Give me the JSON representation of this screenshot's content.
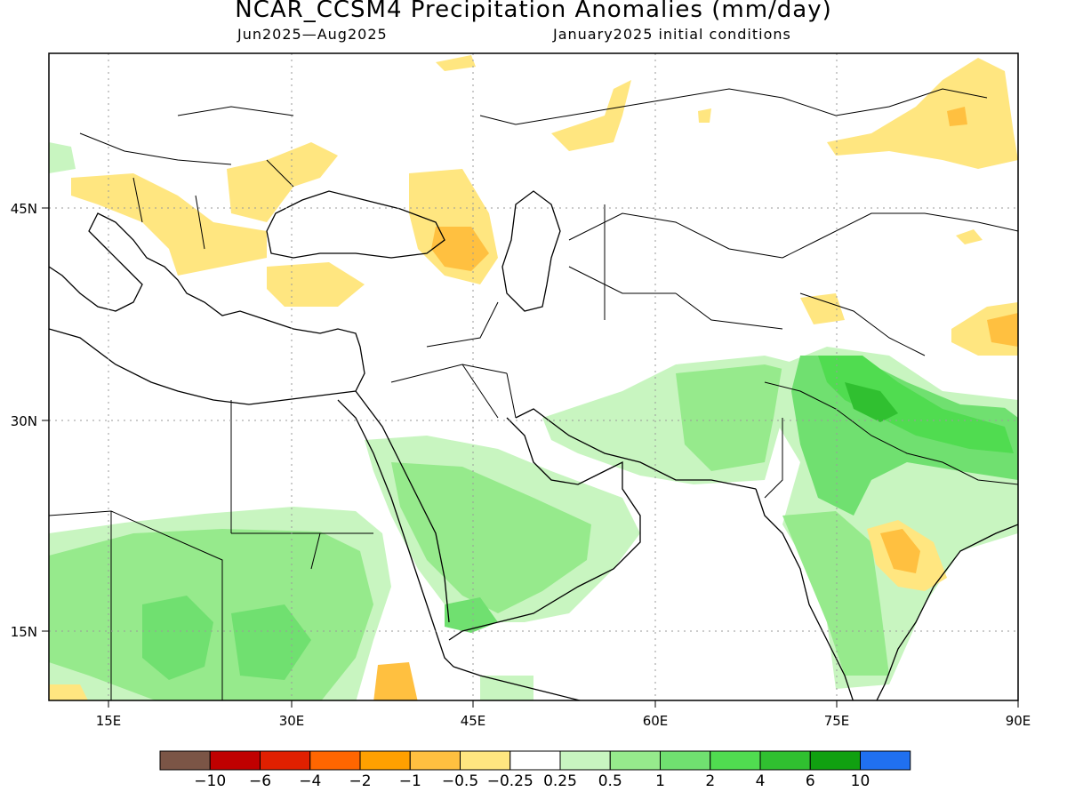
{
  "title": "NCAR_CCSM4 Precipitation Anomalies (mm/day)",
  "period": "Jun2025—Aug2025",
  "init": "January2025 initial conditions",
  "map": {
    "lon_range": [
      10,
      90
    ],
    "lat_range": [
      10,
      56
    ],
    "x_ticks": [
      {
        "lon": 15,
        "label": "15E"
      },
      {
        "lon": 30,
        "label": "30E"
      },
      {
        "lon": 45,
        "label": "45E"
      },
      {
        "lon": 60,
        "label": "60E"
      },
      {
        "lon": 75,
        "label": "75E"
      },
      {
        "lon": 90,
        "label": "90E"
      }
    ],
    "y_ticks": [
      {
        "lat": 45,
        "label": "45N"
      },
      {
        "lat": 30,
        "label": "30N"
      },
      {
        "lat": 15,
        "label": "15N"
      }
    ],
    "grid": true,
    "grid_style": "dotted"
  },
  "colorbar": {
    "colors": [
      "#7b5546",
      "#c00000",
      "#e02000",
      "#ff6600",
      "#ffa000",
      "#ffc040",
      "#ffe680",
      "#ffffff",
      "#c8f5c0",
      "#96ea8c",
      "#70e070",
      "#50dc50",
      "#30c030",
      "#10a010",
      "#2070f0"
    ],
    "labels": [
      "−10",
      "−6",
      "−4",
      "−2",
      "−1",
      "−0.5",
      "−0.25",
      "0.25",
      "0.5",
      "1",
      "2",
      "4",
      "6",
      "10"
    ]
  },
  "anomaly_regions": [
    {
      "name": "north-india-wet",
      "level": "2",
      "color": "#70e070"
    },
    {
      "name": "nepal-himalaya-wet",
      "level": "4",
      "color": "#50dc50"
    },
    {
      "name": "arabia-wet",
      "level": "1",
      "color": "#96ea8c"
    },
    {
      "name": "sahel-wet",
      "level": "1",
      "color": "#96ea8c"
    },
    {
      "name": "central-india-dry",
      "level": "-1",
      "color": "#ffc040"
    },
    {
      "name": "caucasus-dry",
      "level": "-1",
      "color": "#ffc040"
    },
    {
      "name": "balkans-dry",
      "level": "-0.5",
      "color": "#ffe680"
    },
    {
      "name": "mongolia-dry",
      "level": "-0.5",
      "color": "#ffe680"
    }
  ]
}
